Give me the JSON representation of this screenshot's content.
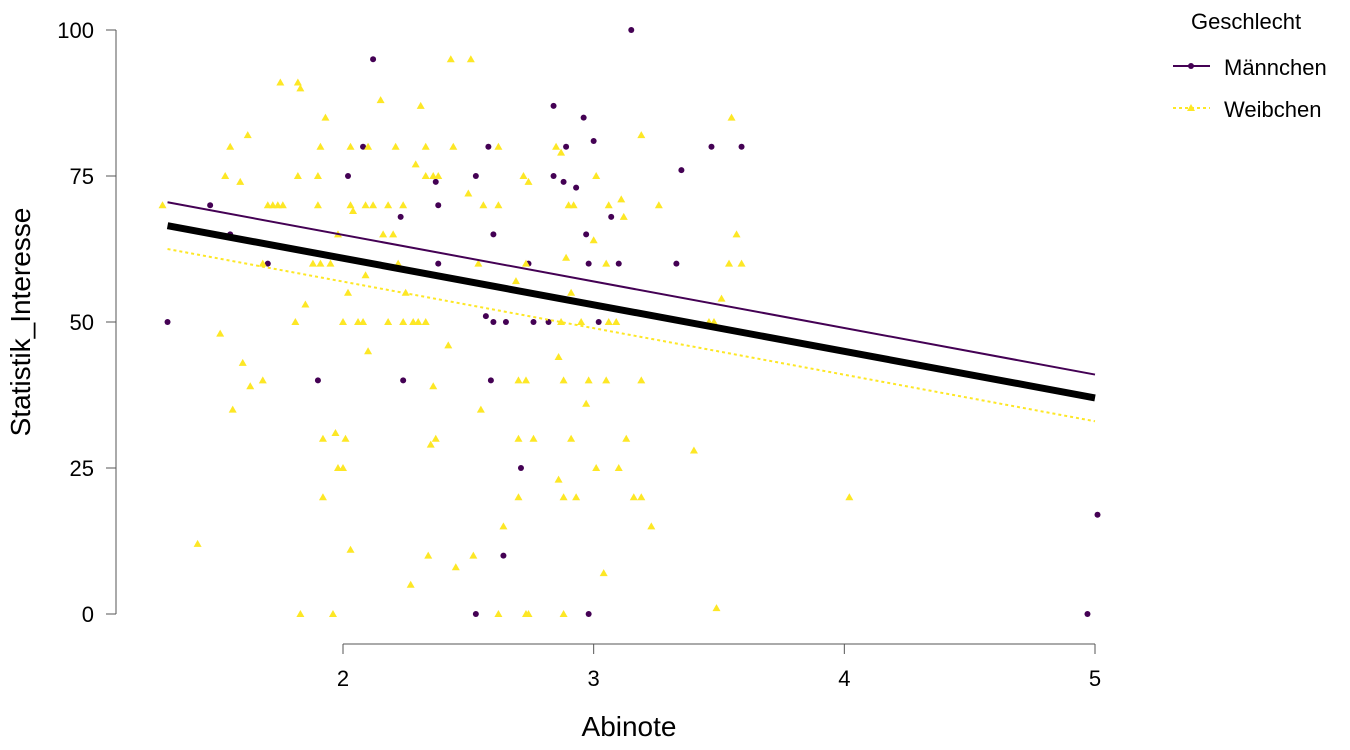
{
  "chart_data": {
    "type": "scatter",
    "xlabel": "Abinote",
    "ylabel": "Statistik_Interesse",
    "xlim": [
      1.1,
      5.0
    ],
    "ylim": [
      0,
      100
    ],
    "x_ticks": [
      2,
      3,
      4,
      5
    ],
    "y_ticks": [
      0,
      25,
      50,
      75,
      100
    ],
    "grid": false,
    "legend": {
      "title": "Geschlecht",
      "position": "top-right",
      "entries": [
        "Männchen",
        "Weibchen"
      ]
    },
    "series": [
      {
        "name": "Männchen",
        "color": "#440154",
        "marker": "circle",
        "points": [
          [
            1.3,
            50
          ],
          [
            1.47,
            70
          ],
          [
            1.55,
            65
          ],
          [
            1.7,
            60
          ],
          [
            1.9,
            40
          ],
          [
            2.02,
            75
          ],
          [
            2.08,
            80
          ],
          [
            2.12,
            95
          ],
          [
            2.23,
            68
          ],
          [
            2.24,
            40
          ],
          [
            2.37,
            74
          ],
          [
            2.38,
            70
          ],
          [
            2.38,
            60
          ],
          [
            2.53,
            75
          ],
          [
            2.53,
            0
          ],
          [
            2.57,
            51
          ],
          [
            2.58,
            80
          ],
          [
            2.59,
            40
          ],
          [
            2.6,
            65
          ],
          [
            2.6,
            50
          ],
          [
            2.64,
            10
          ],
          [
            2.65,
            50
          ],
          [
            2.71,
            25
          ],
          [
            2.74,
            60
          ],
          [
            2.76,
            50
          ],
          [
            2.82,
            50
          ],
          [
            2.84,
            87
          ],
          [
            2.84,
            75
          ],
          [
            2.88,
            74
          ],
          [
            2.89,
            80
          ],
          [
            2.93,
            73
          ],
          [
            2.96,
            85
          ],
          [
            2.97,
            65
          ],
          [
            2.98,
            60
          ],
          [
            2.98,
            0
          ],
          [
            3.0,
            81
          ],
          [
            3.02,
            50
          ],
          [
            3.07,
            68
          ],
          [
            3.1,
            60
          ],
          [
            3.15,
            100
          ],
          [
            3.33,
            60
          ],
          [
            3.35,
            76
          ],
          [
            3.47,
            80
          ],
          [
            3.59,
            80
          ],
          [
            4.97,
            0
          ],
          [
            5.01,
            17
          ]
        ]
      },
      {
        "name": "Weibchen",
        "color": "#FDE725",
        "marker": "triangle",
        "points": [
          [
            1.28,
            70
          ],
          [
            1.42,
            12
          ],
          [
            1.51,
            48
          ],
          [
            1.53,
            75
          ],
          [
            1.55,
            80
          ],
          [
            1.56,
            35
          ],
          [
            1.59,
            74
          ],
          [
            1.6,
            43
          ],
          [
            1.62,
            82
          ],
          [
            1.63,
            39
          ],
          [
            1.68,
            40
          ],
          [
            1.68,
            60
          ],
          [
            1.7,
            70
          ],
          [
            1.72,
            70
          ],
          [
            1.74,
            70
          ],
          [
            1.75,
            91
          ],
          [
            1.76,
            70
          ],
          [
            1.81,
            50
          ],
          [
            1.82,
            75
          ],
          [
            1.82,
            91
          ],
          [
            1.83,
            90
          ],
          [
            1.83,
            0
          ],
          [
            1.85,
            53
          ],
          [
            1.88,
            60
          ],
          [
            1.9,
            70
          ],
          [
            1.9,
            75
          ],
          [
            1.91,
            80
          ],
          [
            1.91,
            60
          ],
          [
            1.92,
            30
          ],
          [
            1.92,
            20
          ],
          [
            1.93,
            85
          ],
          [
            1.95,
            60
          ],
          [
            1.96,
            0
          ],
          [
            1.97,
            31
          ],
          [
            1.98,
            25
          ],
          [
            1.98,
            65
          ],
          [
            2.0,
            50
          ],
          [
            2.0,
            25
          ],
          [
            2.01,
            30
          ],
          [
            2.02,
            55
          ],
          [
            2.03,
            70
          ],
          [
            2.03,
            80
          ],
          [
            2.03,
            11
          ],
          [
            2.04,
            69
          ],
          [
            2.06,
            50
          ],
          [
            2.08,
            50
          ],
          [
            2.09,
            58
          ],
          [
            2.09,
            70
          ],
          [
            2.1,
            45
          ],
          [
            2.1,
            80
          ],
          [
            2.12,
            70
          ],
          [
            2.15,
            88
          ],
          [
            2.16,
            65
          ],
          [
            2.18,
            70
          ],
          [
            2.18,
            50
          ],
          [
            2.2,
            65
          ],
          [
            2.21,
            80
          ],
          [
            2.22,
            60
          ],
          [
            2.24,
            70
          ],
          [
            2.24,
            50
          ],
          [
            2.25,
            55
          ],
          [
            2.27,
            5
          ],
          [
            2.28,
            50
          ],
          [
            2.29,
            77
          ],
          [
            2.3,
            50
          ],
          [
            2.31,
            87
          ],
          [
            2.33,
            80
          ],
          [
            2.33,
            75
          ],
          [
            2.33,
            50
          ],
          [
            2.34,
            10
          ],
          [
            2.35,
            29
          ],
          [
            2.36,
            39
          ],
          [
            2.36,
            75
          ],
          [
            2.37,
            30
          ],
          [
            2.38,
            75
          ],
          [
            2.42,
            46
          ],
          [
            2.43,
            95
          ],
          [
            2.44,
            80
          ],
          [
            2.45,
            8
          ],
          [
            2.5,
            72
          ],
          [
            2.51,
            95
          ],
          [
            2.52,
            10
          ],
          [
            2.54,
            60
          ],
          [
            2.55,
            35
          ],
          [
            2.56,
            70
          ],
          [
            2.62,
            80
          ],
          [
            2.62,
            0
          ],
          [
            2.62,
            70
          ],
          [
            2.64,
            15
          ],
          [
            2.69,
            57
          ],
          [
            2.7,
            40
          ],
          [
            2.7,
            30
          ],
          [
            2.7,
            20
          ],
          [
            2.72,
            75
          ],
          [
            2.73,
            60
          ],
          [
            2.73,
            40
          ],
          [
            2.73,
            0
          ],
          [
            2.74,
            0
          ],
          [
            2.74,
            74
          ],
          [
            2.76,
            30
          ],
          [
            2.85,
            80
          ],
          [
            2.86,
            44
          ],
          [
            2.86,
            23
          ],
          [
            2.87,
            79
          ],
          [
            2.87,
            50
          ],
          [
            2.88,
            40
          ],
          [
            2.88,
            20
          ],
          [
            2.88,
            0
          ],
          [
            2.89,
            61
          ],
          [
            2.9,
            70
          ],
          [
            2.91,
            55
          ],
          [
            2.91,
            30
          ],
          [
            2.92,
            70
          ],
          [
            2.93,
            20
          ],
          [
            2.95,
            50
          ],
          [
            2.97,
            36
          ],
          [
            2.98,
            40
          ],
          [
            3.0,
            64
          ],
          [
            3.01,
            25
          ],
          [
            3.01,
            75
          ],
          [
            3.04,
            7
          ],
          [
            3.05,
            40
          ],
          [
            3.05,
            60
          ],
          [
            3.06,
            50
          ],
          [
            3.06,
            70
          ],
          [
            3.09,
            50
          ],
          [
            3.1,
            25
          ],
          [
            3.11,
            71
          ],
          [
            3.12,
            68
          ],
          [
            3.13,
            30
          ],
          [
            3.16,
            20
          ],
          [
            3.19,
            20
          ],
          [
            3.19,
            40
          ],
          [
            3.19,
            82
          ],
          [
            3.23,
            15
          ],
          [
            3.26,
            70
          ],
          [
            3.4,
            28
          ],
          [
            3.46,
            50
          ],
          [
            3.48,
            50
          ],
          [
            3.49,
            1
          ],
          [
            3.51,
            54
          ],
          [
            3.54,
            60
          ],
          [
            3.55,
            85
          ],
          [
            3.57,
            65
          ],
          [
            3.59,
            60
          ],
          [
            4.02,
            20
          ]
        ]
      }
    ],
    "lines": [
      {
        "name": "Männchen",
        "x": [
          1.3,
          5.0
        ],
        "y": [
          70.5,
          41.0
        ],
        "color": "#440154",
        "style": "solid"
      },
      {
        "name": "Weibchen",
        "x": [
          1.3,
          5.0
        ],
        "y": [
          62.5,
          33.0
        ],
        "color": "#FDE725",
        "style": "dotted"
      },
      {
        "name": "",
        "x": [
          1.3,
          5.0
        ],
        "y": [
          66.5,
          37.0
        ],
        "color": "#000000",
        "style": "solid-thick"
      }
    ]
  }
}
